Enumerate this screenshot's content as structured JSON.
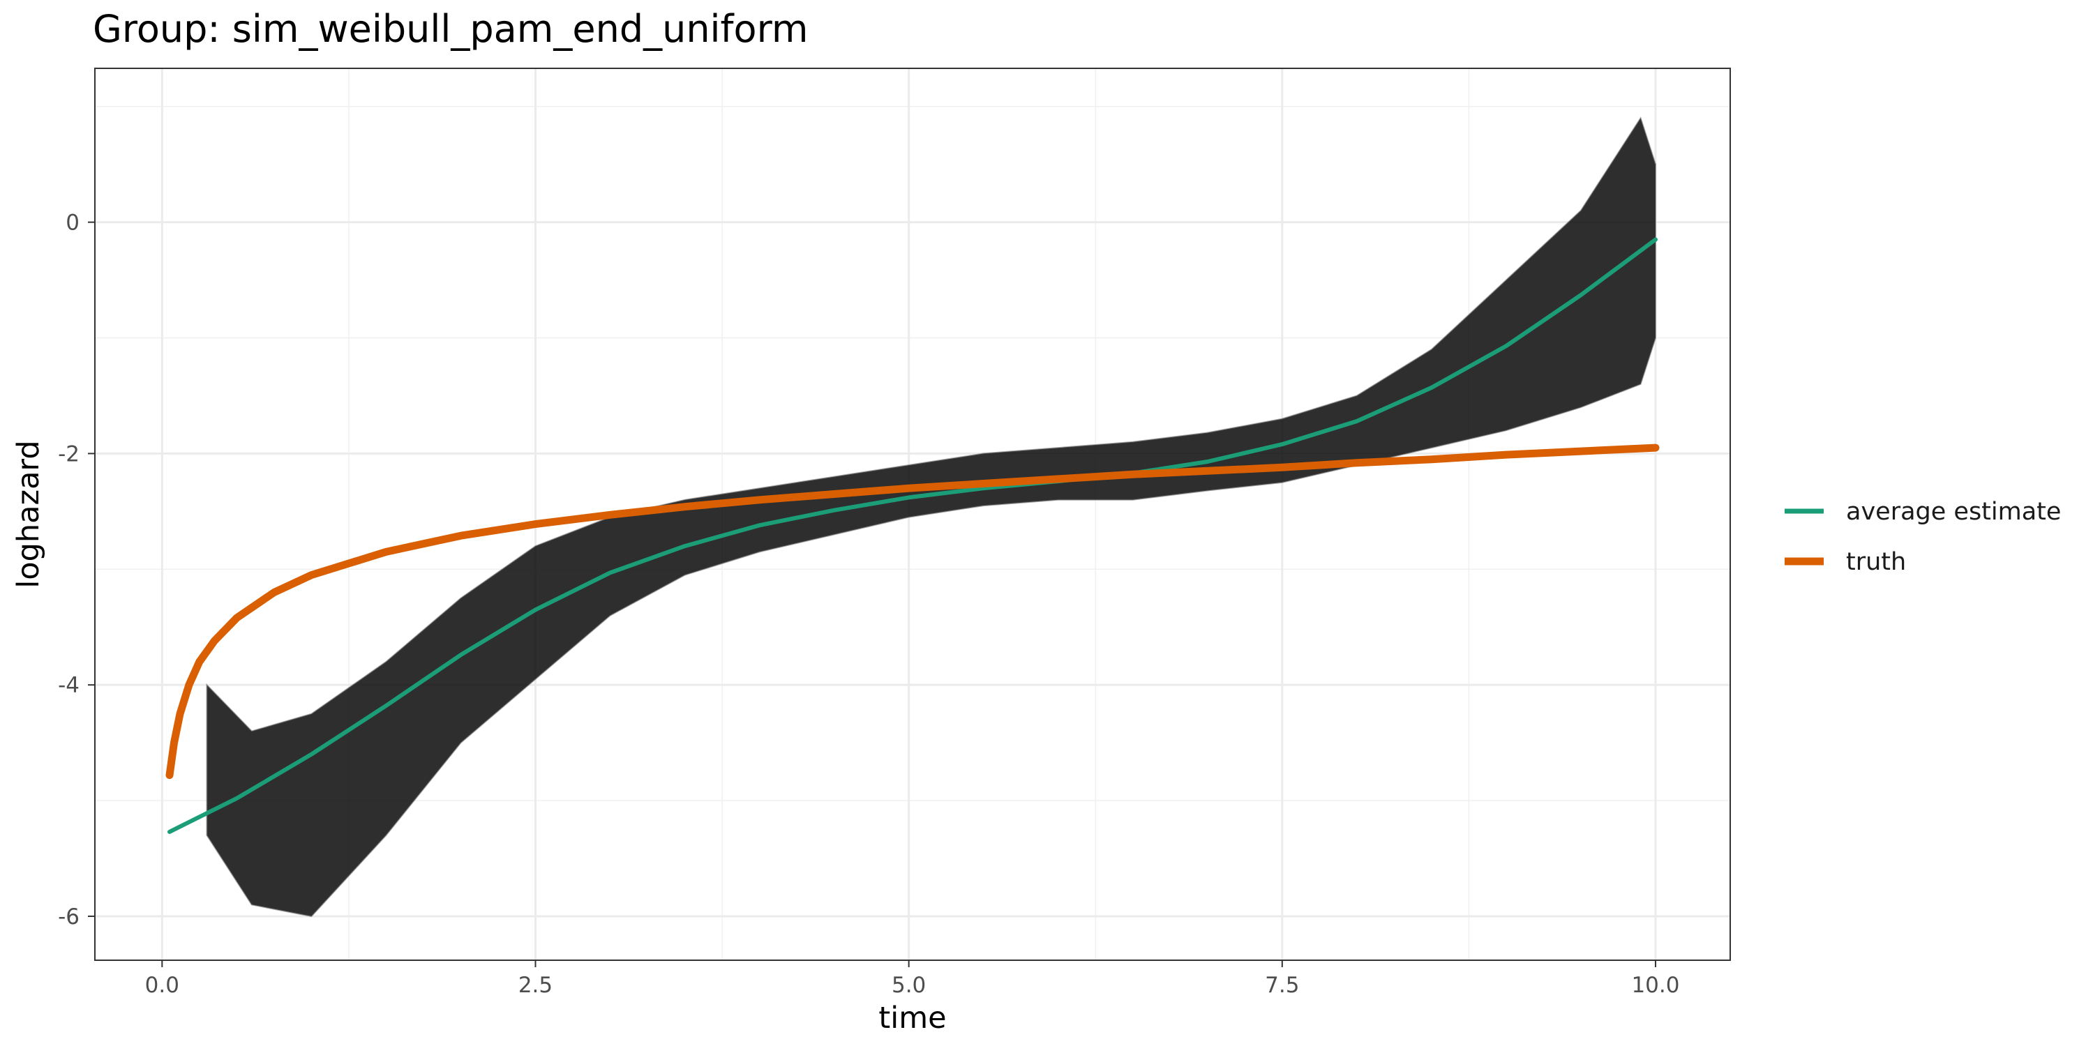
{
  "chart_data": {
    "type": "line",
    "title": "Group: sim_weibull_pam_end_uniform",
    "xlabel": "time",
    "ylabel": "loghazard",
    "xlim": [
      -0.45,
      10.5
    ],
    "ylim": [
      -6.38,
      1.33
    ],
    "x_ticks": [
      0,
      2.5,
      5,
      7.5,
      10
    ],
    "x_tick_labels": [
      "0.0",
      "2.5",
      "5.0",
      "7.5",
      "10.0"
    ],
    "y_ticks": [
      -6,
      -4,
      -2,
      0
    ],
    "y_tick_labels": [
      "-6",
      "-4",
      "-2",
      "0"
    ],
    "grid": true,
    "legend_position": "right",
    "legend": [
      {
        "label": "average estimate",
        "color": "#1b9e77"
      },
      {
        "label": "truth",
        "color": "#d95f02"
      }
    ],
    "series": [
      {
        "name": "average estimate",
        "color": "#1b9e77",
        "x": [
          0.05,
          0.5,
          1.0,
          1.5,
          2.0,
          2.5,
          3.0,
          3.5,
          4.0,
          4.5,
          5.0,
          5.5,
          6.0,
          6.5,
          7.0,
          7.5,
          8.0,
          8.5,
          9.0,
          9.5,
          10.0
        ],
        "y": [
          -5.27,
          -4.98,
          -4.6,
          -4.18,
          -3.74,
          -3.35,
          -3.03,
          -2.8,
          -2.62,
          -2.49,
          -2.38,
          -2.3,
          -2.24,
          -2.17,
          -2.07,
          -1.92,
          -1.72,
          -1.43,
          -1.07,
          -0.63,
          -0.15
        ]
      },
      {
        "name": "truth",
        "color": "#d95f02",
        "x": [
          0.05,
          0.08,
          0.12,
          0.18,
          0.25,
          0.35,
          0.5,
          0.75,
          1.0,
          1.5,
          2.0,
          2.5,
          3.0,
          3.5,
          4.0,
          4.5,
          5.0,
          5.5,
          6.0,
          6.5,
          7.0,
          7.5,
          8.0,
          8.5,
          9.0,
          9.5,
          10.0
        ],
        "y": [
          -4.78,
          -4.5,
          -4.25,
          -4.0,
          -3.8,
          -3.62,
          -3.42,
          -3.2,
          -3.05,
          -2.85,
          -2.71,
          -2.61,
          -2.53,
          -2.46,
          -2.4,
          -2.35,
          -2.3,
          -2.26,
          -2.22,
          -2.18,
          -2.15,
          -2.12,
          -2.08,
          -2.05,
          -2.01,
          -1.98,
          -1.95
        ]
      }
    ],
    "band": {
      "color": "#000000",
      "x": [
        0.3,
        0.6,
        1.0,
        1.5,
        2.0,
        2.5,
        3.0,
        3.5,
        4.0,
        4.5,
        5.0,
        5.5,
        6.0,
        6.5,
        7.0,
        7.5,
        8.0,
        8.5,
        9.0,
        9.5,
        9.9,
        10.0
      ],
      "upper": [
        -4.0,
        -4.4,
        -4.25,
        -3.8,
        -3.25,
        -2.8,
        -2.55,
        -2.4,
        -2.3,
        -2.2,
        -2.1,
        -2.0,
        -1.95,
        -1.9,
        -1.82,
        -1.7,
        -1.5,
        -1.1,
        -0.5,
        0.1,
        0.9,
        0.5
      ],
      "lower": [
        -5.3,
        -5.9,
        -6.0,
        -5.3,
        -4.5,
        -3.95,
        -3.4,
        -3.05,
        -2.85,
        -2.7,
        -2.55,
        -2.45,
        -2.4,
        -2.4,
        -2.32,
        -2.25,
        -2.1,
        -1.95,
        -1.8,
        -1.6,
        -1.4,
        -1.0
      ]
    }
  }
}
